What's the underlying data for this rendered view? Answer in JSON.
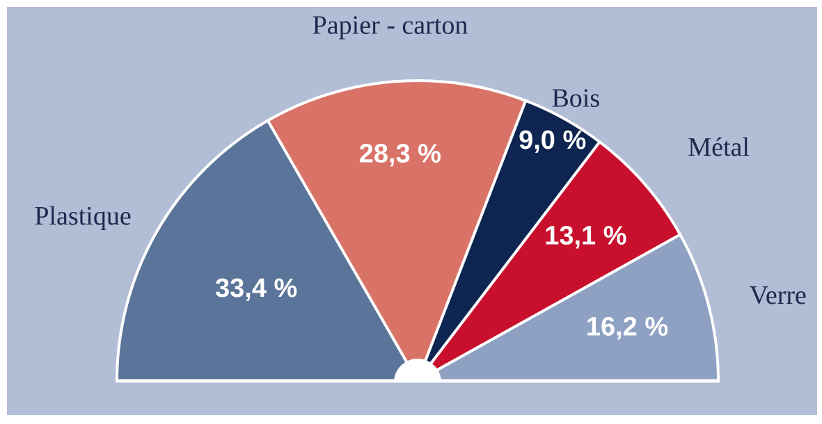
{
  "chart_data": {
    "type": "pie",
    "subtype": "half-donut",
    "unit": "%",
    "categories": [
      "Plastique",
      "Papier - carton",
      "Bois",
      "Métal",
      "Verre"
    ],
    "values": [
      33.4,
      28.3,
      9.0,
      13.1,
      16.2
    ],
    "value_labels": [
      "33,4 %",
      "28,3 %",
      "9,0 %",
      "13,1 %",
      "16,2 %"
    ],
    "colors": [
      "#5b7499",
      "#d97367",
      "#0d2550",
      "#c8102e",
      "#8ea1c2"
    ],
    "background": "#b2bdd6",
    "legend": "none"
  }
}
